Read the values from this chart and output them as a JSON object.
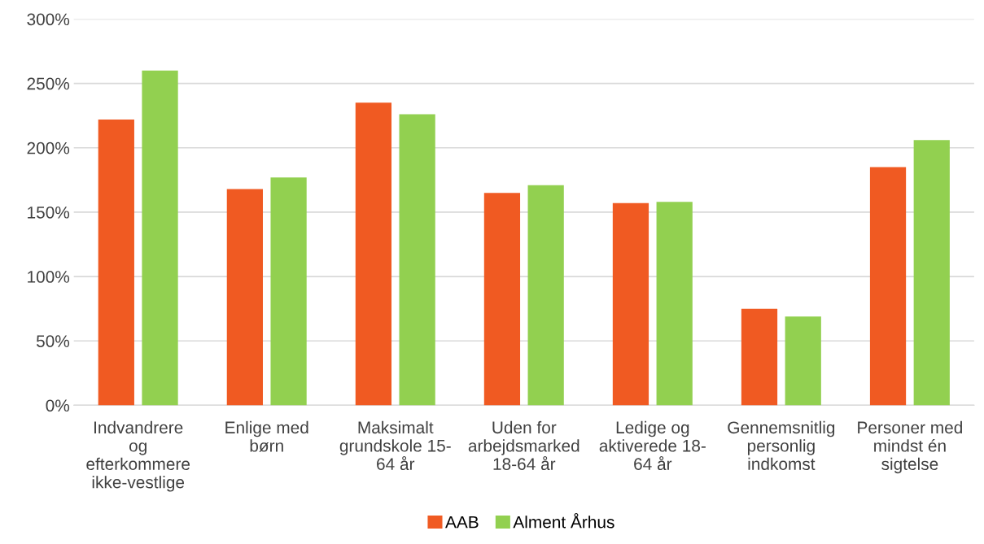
{
  "chart_data": {
    "type": "bar",
    "categories": [
      "Indvandrere\nog\nefterkommere\nikke-vestlige",
      "Enlige med\nbørn",
      "Maksimalt\ngrundskole 15-\n64 år",
      "Uden for\narbejdsmarked\n18-64 år",
      "Ledige og\naktiverede 18-\n64 år",
      "Gennemsnitlig\npersonlig\nindkomst",
      "Personer med\nmindst én\nsigtelse"
    ],
    "series": [
      {
        "name": "AAB",
        "color": "#f05a22",
        "values": [
          222,
          168,
          235,
          165,
          157,
          75,
          185
        ]
      },
      {
        "name": "Alment Århus",
        "color": "#92d050",
        "values": [
          260,
          177,
          226,
          171,
          158,
          69,
          206
        ]
      }
    ],
    "ylim": [
      0,
      300
    ],
    "yticks": [
      {
        "value": 0,
        "label": "0%"
      },
      {
        "value": 50,
        "label": "50%"
      },
      {
        "value": 100,
        "label": "100%"
      },
      {
        "value": 150,
        "label": "150%"
      },
      {
        "value": 200,
        "label": "200%"
      },
      {
        "value": 250,
        "label": "250%"
      },
      {
        "value": 300,
        "label": "300%"
      }
    ],
    "grid": "y",
    "legend": "bottom"
  }
}
